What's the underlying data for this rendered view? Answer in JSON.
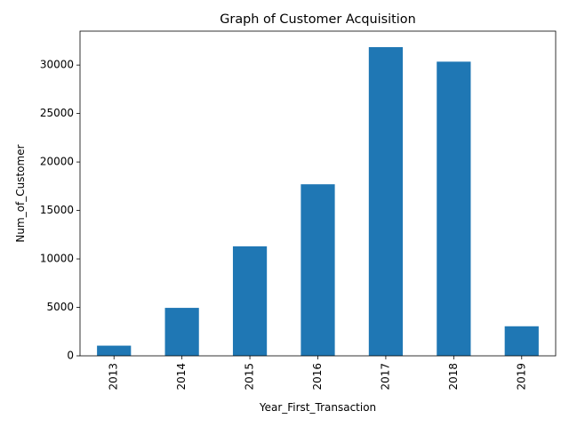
{
  "chart_data": {
    "type": "bar",
    "title": "Graph of Customer Acquisition",
    "xlabel": "Year_First_Transaction",
    "ylabel": "Num_of_Customer",
    "categories": [
      "2013",
      "2014",
      "2015",
      "2016",
      "2017",
      "2018",
      "2019"
    ],
    "values": [
      1050,
      4950,
      11300,
      17700,
      31850,
      30350,
      3050
    ],
    "ylim": [
      0,
      33500
    ],
    "yticks": [
      0,
      5000,
      10000,
      15000,
      20000,
      25000,
      30000
    ],
    "ytick_labels": [
      "0",
      "5000",
      "10000",
      "15000",
      "20000",
      "25000",
      "30000"
    ],
    "bar_color": "#1f77b4",
    "grid": false,
    "legend": "none"
  }
}
